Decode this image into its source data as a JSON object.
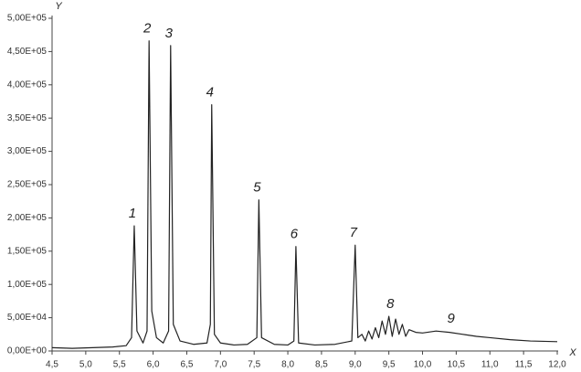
{
  "chart_data": {
    "type": "line",
    "x_label": "X",
    "y_label": "Y",
    "color": "#222222",
    "x": [
      4.5,
      4.8,
      5.1,
      5.4,
      5.6,
      5.68,
      5.72,
      5.76,
      5.85,
      5.91,
      5.94,
      5.98,
      6.05,
      6.15,
      6.23,
      6.26,
      6.3,
      6.4,
      6.6,
      6.8,
      6.85,
      6.87,
      6.91,
      7.0,
      7.2,
      7.4,
      7.54,
      7.57,
      7.61,
      7.8,
      8.0,
      8.09,
      8.12,
      8.16,
      8.4,
      8.7,
      8.95,
      9.0,
      9.04,
      9.1,
      9.15,
      9.2,
      9.25,
      9.3,
      9.35,
      9.4,
      9.45,
      9.5,
      9.55,
      9.6,
      9.65,
      9.7,
      9.75,
      9.8,
      9.9,
      10.0,
      10.2,
      10.4,
      10.6,
      10.8,
      11.0,
      11.3,
      11.6,
      12.0
    ],
    "values": [
      5000,
      4000,
      5000,
      6000,
      8000,
      20000,
      188000,
      30000,
      12000,
      30000,
      466000,
      60000,
      20000,
      12000,
      30000,
      459000,
      40000,
      15000,
      10000,
      12000,
      40000,
      370000,
      25000,
      12000,
      9000,
      10000,
      20000,
      227000,
      20000,
      10000,
      9000,
      15000,
      157000,
      12000,
      9000,
      10000,
      15000,
      159000,
      20000,
      25000,
      15000,
      30000,
      18000,
      35000,
      20000,
      45000,
      25000,
      52000,
      22000,
      48000,
      25000,
      40000,
      22000,
      32000,
      28000,
      27000,
      30000,
      28000,
      25000,
      22000,
      20000,
      17000,
      15000,
      14000
    ],
    "annotations": [
      {
        "text": "1",
        "x": 5.72,
        "y": 188000
      },
      {
        "text": "2",
        "x": 5.94,
        "y": 466000
      },
      {
        "text": "3",
        "x": 6.26,
        "y": 459000
      },
      {
        "text": "4",
        "x": 6.87,
        "y": 370000
      },
      {
        "text": "5",
        "x": 7.57,
        "y": 227000
      },
      {
        "text": "6",
        "x": 8.12,
        "y": 157000
      },
      {
        "text": "7",
        "x": 9.0,
        "y": 159000
      },
      {
        "text": "8",
        "x": 9.55,
        "y": 52000
      },
      {
        "text": "9",
        "x": 10.45,
        "y": 30000
      }
    ],
    "xlim": [
      4.5,
      12.0
    ],
    "xticks": [
      {
        "value": 4.5,
        "label": "4,5"
      },
      {
        "value": 5.0,
        "label": "5,0"
      },
      {
        "value": 5.5,
        "label": "5,5"
      },
      {
        "value": 6.0,
        "label": "6,0"
      },
      {
        "value": 6.5,
        "label": "6,5"
      },
      {
        "value": 7.0,
        "label": "7,0"
      },
      {
        "value": 7.5,
        "label": "7,5"
      },
      {
        "value": 8.0,
        "label": "8,0"
      },
      {
        "value": 8.5,
        "label": "8,5"
      },
      {
        "value": 9.0,
        "label": "9,0"
      },
      {
        "value": 9.5,
        "label": "9,5"
      },
      {
        "value": 10.0,
        "label": "10,0"
      },
      {
        "value": 10.5,
        "label": "10,5"
      },
      {
        "value": 11.0,
        "label": "11,0"
      },
      {
        "value": 11.5,
        "label": "11,5"
      },
      {
        "value": 12.0,
        "label": "12,0"
      }
    ],
    "ylim": [
      0,
      500000
    ],
    "yticks": [
      {
        "value": 0,
        "label": "0,00E+00"
      },
      {
        "value": 50000,
        "label": "5,00E+04"
      },
      {
        "value": 100000,
        "label": "1,00E+05"
      },
      {
        "value": 150000,
        "label": "1,50E+05"
      },
      {
        "value": 200000,
        "label": "2,00E+05"
      },
      {
        "value": 250000,
        "label": "2,50E+05"
      },
      {
        "value": 300000,
        "label": "3,00E+05"
      },
      {
        "value": 350000,
        "label": "3,50E+05"
      },
      {
        "value": 400000,
        "label": "4,00E+05"
      },
      {
        "value": 450000,
        "label": "4,50E+05"
      },
      {
        "value": 500000,
        "label": "5,00E+05"
      }
    ],
    "grid": false
  }
}
